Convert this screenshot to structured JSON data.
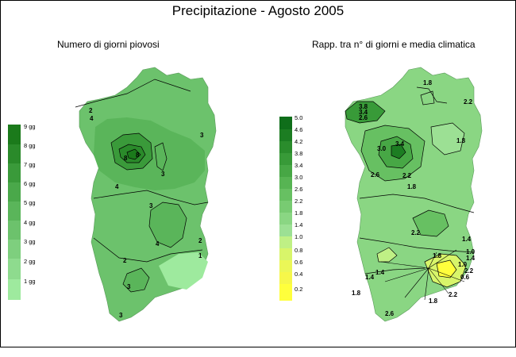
{
  "title": "Precipitazione - Agosto 2005",
  "left_map": {
    "subtitle": "Numero di giorni piovosi",
    "legend": [
      {
        "label": "9 gg",
        "color": "#1b7a1b"
      },
      {
        "label": "8 gg",
        "color": "#2a8a2a"
      },
      {
        "label": "7 gg",
        "color": "#3a9a3a"
      },
      {
        "label": "6 gg",
        "color": "#4aa84a"
      },
      {
        "label": "5 gg",
        "color": "#5ab55a"
      },
      {
        "label": "4 gg",
        "color": "#6cc26c"
      },
      {
        "label": "3 gg",
        "color": "#7ecf7e"
      },
      {
        "label": "2 gg",
        "color": "#8edb8e"
      },
      {
        "label": "1 gg",
        "color": "#9eea9e"
      }
    ],
    "contour_labels": [
      "2",
      "4",
      "3",
      "8",
      "8",
      "4",
      "3",
      "3",
      "4",
      "2",
      "2",
      "1",
      "3",
      "3"
    ]
  },
  "right_map": {
    "subtitle": "Rapp. tra n° di giorni e media climatica",
    "legend": [
      {
        "label": "5.0",
        "color": "#0f6e1a"
      },
      {
        "label": "4.6",
        "color": "#1c7d22"
      },
      {
        "label": "4.2",
        "color": "#2a8c2c"
      },
      {
        "label": "3.8",
        "color": "#389a38"
      },
      {
        "label": "3.4",
        "color": "#47a745"
      },
      {
        "label": "3.0",
        "color": "#57b453"
      },
      {
        "label": "2.6",
        "color": "#67c062"
      },
      {
        "label": "2.2",
        "color": "#78cb72"
      },
      {
        "label": "1.8",
        "color": "#8ad683"
      },
      {
        "label": "1.4",
        "color": "#9ce094"
      },
      {
        "label": "1.0",
        "color": "#bff085"
      },
      {
        "label": "0.8",
        "color": "#d8f56a"
      },
      {
        "label": "0.6",
        "color": "#ebf757"
      },
      {
        "label": "0.4",
        "color": "#f6f74a"
      },
      {
        "label": "0.2",
        "color": "#ffff3c"
      }
    ],
    "contour_labels": [
      "1.8",
      "2.2",
      "3.8",
      "3.4",
      "2.6",
      "3.0",
      "3.4",
      "1.8",
      "2.6",
      "2.2",
      "1.8",
      "2.2",
      "1.4",
      "1.0",
      "1.4",
      "1.0",
      "1.8",
      "2.2",
      "1.4",
      "0.6",
      "1.4",
      "1.8",
      "1.8",
      "2.2",
      "2.6"
    ]
  }
}
